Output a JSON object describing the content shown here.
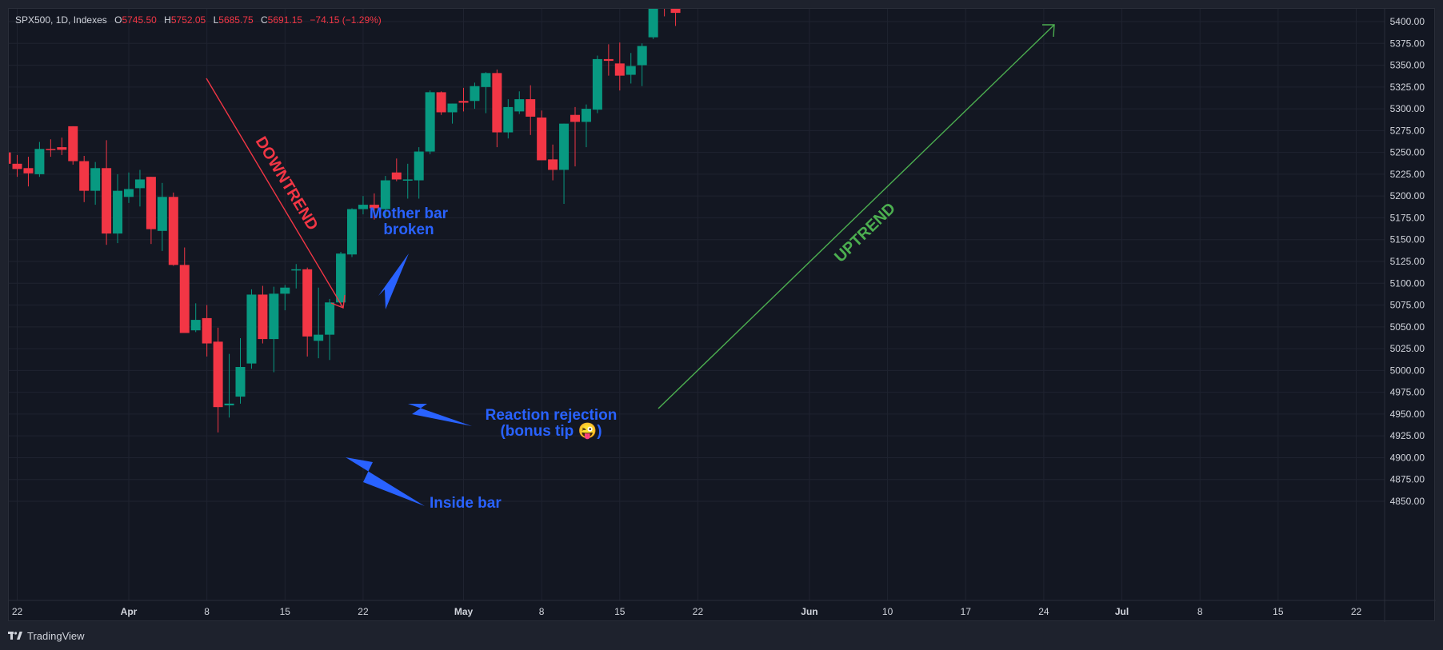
{
  "legend": {
    "symbol": "SPX500, 1D, Indexes",
    "o_label": "O",
    "o_value": "5745.50",
    "h_label": "H",
    "h_value": "5752.05",
    "l_label": "L",
    "l_value": "5685.75",
    "c_label": "C",
    "c_value": "5691.15",
    "change": "−74.15 (−1.29%)"
  },
  "footer": {
    "brand": "TradingView"
  },
  "annotations": {
    "downtrend": "DOWNTREND",
    "uptrend": "UPTREND",
    "mother_bar_1": "Mother bar",
    "mother_bar_2": "broken",
    "reaction_1": "Reaction rejection",
    "reaction_2": "(bonus tip 😜)",
    "inside_bar": "Inside bar"
  },
  "colors": {
    "up": "#089981",
    "down": "#f23645",
    "grid": "#1f2330",
    "text": "#d1d4dc",
    "annotation_blue": "#2962ff",
    "annotation_red": "#f23645",
    "annotation_green": "#4caf50"
  },
  "chart_data": {
    "type": "candlestick",
    "symbol": "SPX500",
    "timeframe": "1D",
    "ylim": [
      4828,
      5420
    ],
    "yticks": [
      5400,
      5375,
      5350,
      5325,
      5300,
      5275,
      5250,
      5225,
      5200,
      5175,
      5150,
      5125,
      5100,
      5075,
      5050,
      5025,
      5000,
      4975,
      4950,
      4925,
      4900,
      4875,
      4850
    ],
    "xticks": [
      {
        "day": -10,
        "label": "22",
        "bold": false
      },
      {
        "day": 0,
        "label": "Apr",
        "bold": true
      },
      {
        "day": 7,
        "label": "8",
        "bold": false
      },
      {
        "day": 14,
        "label": "15",
        "bold": false
      },
      {
        "day": 21,
        "label": "22",
        "bold": false
      },
      {
        "day": 30,
        "label": "May",
        "bold": true
      },
      {
        "day": 37,
        "label": "8",
        "bold": false
      },
      {
        "day": 44,
        "label": "15",
        "bold": false
      },
      {
        "day": 51,
        "label": "22",
        "bold": false
      },
      {
        "day": 61,
        "label": "Jun",
        "bold": true
      },
      {
        "day": 68,
        "label": "10",
        "bold": false
      },
      {
        "day": 75,
        "label": "17",
        "bold": false
      },
      {
        "day": 82,
        "label": "24",
        "bold": false
      },
      {
        "day": 89,
        "label": "Jul",
        "bold": true
      },
      {
        "day": 96,
        "label": "8",
        "bold": false
      },
      {
        "day": 103,
        "label": "15",
        "bold": false
      },
      {
        "day": 110,
        "label": "22",
        "bold": false
      }
    ],
    "candles": [
      {
        "day": -12,
        "o": 5247,
        "h": 5265,
        "l": 5243,
        "c": 5252
      },
      {
        "day": -11,
        "o": 5250,
        "h": 5257,
        "l": 5235,
        "c": 5237
      },
      {
        "day": -10,
        "o": 5237,
        "h": 5247,
        "l": 5222,
        "c": 5231
      },
      {
        "day": -9,
        "o": 5232,
        "h": 5245,
        "l": 5211,
        "c": 5226
      },
      {
        "day": -8,
        "o": 5225,
        "h": 5262,
        "l": 5222,
        "c": 5254
      },
      {
        "day": -7,
        "o": 5254,
        "h": 5265,
        "l": 5245,
        "c": 5253
      },
      {
        "day": -6,
        "o": 5256,
        "h": 5267,
        "l": 5247,
        "c": 5253
      },
      {
        "day": -5,
        "o": 5280,
        "h": 5280,
        "l": 5236,
        "c": 5240
      },
      {
        "day": -4,
        "o": 5240,
        "h": 5246,
        "l": 5193,
        "c": 5206
      },
      {
        "day": -3,
        "o": 5206,
        "h": 5239,
        "l": 5190,
        "c": 5232
      },
      {
        "day": -2,
        "o": 5232,
        "h": 5264,
        "l": 5144,
        "c": 5157
      },
      {
        "day": -1,
        "o": 5157,
        "h": 5225,
        "l": 5146,
        "c": 5206
      },
      {
        "day": 0,
        "o": 5199,
        "h": 5227,
        "l": 5192,
        "c": 5208
      },
      {
        "day": 1,
        "o": 5209,
        "h": 5230,
        "l": 5188,
        "c": 5219
      },
      {
        "day": 2,
        "o": 5222,
        "h": 5222,
        "l": 5145,
        "c": 5162
      },
      {
        "day": 3,
        "o": 5160,
        "h": 5215,
        "l": 5137,
        "c": 5199
      },
      {
        "day": 4,
        "o": 5199,
        "h": 5204,
        "l": 5120,
        "c": 5121
      },
      {
        "day": 5,
        "o": 5121,
        "h": 5141,
        "l": 5044,
        "c": 5043
      },
      {
        "day": 6,
        "o": 5046,
        "h": 5077,
        "l": 5044,
        "c": 5058
      },
      {
        "day": 7,
        "o": 5060,
        "h": 5075,
        "l": 5016,
        "c": 5031
      },
      {
        "day": 8,
        "o": 5033,
        "h": 5049,
        "l": 4929,
        "c": 4958
      },
      {
        "day": 9,
        "o": 4960,
        "h": 5019,
        "l": 4946,
        "c": 4962
      },
      {
        "day": 10,
        "o": 4970,
        "h": 5037,
        "l": 4962,
        "c": 5004
      },
      {
        "day": 11,
        "o": 5008,
        "h": 5093,
        "l": 5002,
        "c": 5087
      },
      {
        "day": 12,
        "o": 5087,
        "h": 5097,
        "l": 5031,
        "c": 5036
      },
      {
        "day": 13,
        "o": 5036,
        "h": 5096,
        "l": 4998,
        "c": 5088
      },
      {
        "day": 14,
        "o": 5088,
        "h": 5098,
        "l": 5069,
        "c": 5095
      },
      {
        "day": 15,
        "o": 5116,
        "h": 5122,
        "l": 5094,
        "c": 5116
      },
      {
        "day": 16,
        "o": 5116,
        "h": 5118,
        "l": 5016,
        "c": 5039
      },
      {
        "day": 17,
        "o": 5034,
        "h": 5095,
        "l": 5014,
        "c": 5041
      },
      {
        "day": 18,
        "o": 5041,
        "h": 5082,
        "l": 5012,
        "c": 5078
      },
      {
        "day": 19,
        "o": 5078,
        "h": 5136,
        "l": 5073,
        "c": 5134
      },
      {
        "day": 20,
        "o": 5133,
        "h": 5186,
        "l": 5130,
        "c": 5185
      },
      {
        "day": 21,
        "o": 5185,
        "h": 5200,
        "l": 5179,
        "c": 5190
      },
      {
        "day": 22,
        "o": 5190,
        "h": 5203,
        "l": 5173,
        "c": 5186
      },
      {
        "day": 23,
        "o": 5185,
        "h": 5223,
        "l": 5174,
        "c": 5218
      },
      {
        "day": 24,
        "o": 5227,
        "h": 5243,
        "l": 5217,
        "c": 5219
      },
      {
        "day": 25,
        "o": 5219,
        "h": 5237,
        "l": 5197,
        "c": 5219
      },
      {
        "day": 26,
        "o": 5218,
        "h": 5256,
        "l": 5197,
        "c": 5251
      },
      {
        "day": 27,
        "o": 5251,
        "h": 5321,
        "l": 5248,
        "c": 5319
      },
      {
        "day": 28,
        "o": 5319,
        "h": 5320,
        "l": 5293,
        "c": 5296
      },
      {
        "day": 29,
        "o": 5296,
        "h": 5306,
        "l": 5283,
        "c": 5306
      },
      {
        "day": 30,
        "o": 5309,
        "h": 5324,
        "l": 5297,
        "c": 5307
      },
      {
        "day": 31,
        "o": 5309,
        "h": 5330,
        "l": 5300,
        "c": 5326
      },
      {
        "day": 32,
        "o": 5325,
        "h": 5342,
        "l": 5295,
        "c": 5341
      },
      {
        "day": 33,
        "o": 5341,
        "h": 5345,
        "l": 5256,
        "c": 5273
      },
      {
        "day": 34,
        "o": 5273,
        "h": 5311,
        "l": 5266,
        "c": 5302
      },
      {
        "day": 35,
        "o": 5297,
        "h": 5320,
        "l": 5294,
        "c": 5311
      },
      {
        "day": 36,
        "o": 5311,
        "h": 5327,
        "l": 5270,
        "c": 5291
      },
      {
        "day": 37,
        "o": 5290,
        "h": 5298,
        "l": 5242,
        "c": 5241
      },
      {
        "day": 38,
        "o": 5242,
        "h": 5259,
        "l": 5218,
        "c": 5230
      },
      {
        "day": 39,
        "o": 5230,
        "h": 5283,
        "l": 5191,
        "c": 5283
      },
      {
        "day": 40,
        "o": 5293,
        "h": 5302,
        "l": 5234,
        "c": 5285
      },
      {
        "day": 41,
        "o": 5285,
        "h": 5305,
        "l": 5256,
        "c": 5300
      },
      {
        "day": 42,
        "o": 5299,
        "h": 5361,
        "l": 5295,
        "c": 5357
      },
      {
        "day": 43,
        "o": 5357,
        "h": 5374,
        "l": 5338,
        "c": 5355
      },
      {
        "day": 44,
        "o": 5352,
        "h": 5376,
        "l": 5321,
        "c": 5338
      },
      {
        "day": 45,
        "o": 5339,
        "h": 5364,
        "l": 5329,
        "c": 5349
      },
      {
        "day": 46,
        "o": 5350,
        "h": 5375,
        "l": 5326,
        "c": 5372
      },
      {
        "day": 47,
        "o": 5382,
        "h": 5422,
        "l": 5380,
        "c": 5418
      },
      {
        "day": 48,
        "o": 5432,
        "h": 5440,
        "l": 5406,
        "c": 5428
      },
      {
        "day": 49,
        "o": 5432,
        "h": 5437,
        "l": 5395,
        "c": 5410
      }
    ]
  }
}
